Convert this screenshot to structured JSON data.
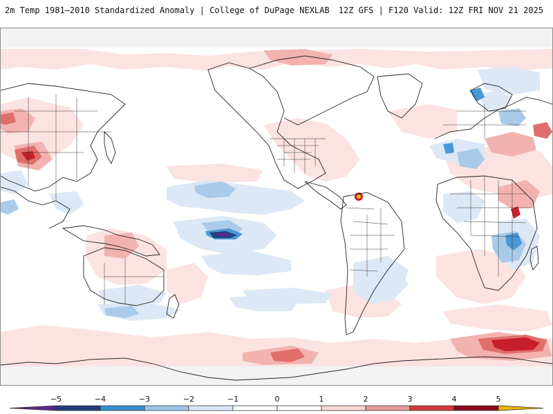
{
  "header": {
    "title": "2m Temp 1981–2010 Standardized Anomaly | College of DuPage NEXLAB",
    "model_info": "12Z GFS | F120 Valid: 12Z FRI NOV 21 2025"
  },
  "colorbar": {
    "tick_labels": [
      "−5",
      "−4",
      "−3",
      "−2",
      "−1",
      "0",
      "1",
      "2",
      "3",
      "4",
      "5"
    ],
    "colors": [
      "#5a2a8a",
      "#1f3f7a",
      "#3a8fd0",
      "#9cc6ea",
      "#dde9f6",
      "#ffffff",
      "#ffffff",
      "#f7d6d4",
      "#e89a96",
      "#d23a3a",
      "#8c0a1a",
      "#f0b400"
    ]
  },
  "map": {
    "projection": "equirectangular, 180° centered",
    "palette": {
      "neg1": "#dce8f5",
      "neg2": "#a9cbe9",
      "neg3": "#4a97d4",
      "neg4": "#22407e",
      "neg5": "#5a2a8a",
      "pos1": "#fbe3e1",
      "pos2": "#f2b3b0",
      "pos3": "#e06e6b",
      "pos4": "#c81e2a",
      "pos5": "#7e0b18",
      "extreme": "#f5c400",
      "coast": "#222222",
      "polar": "#ececec"
    }
  }
}
